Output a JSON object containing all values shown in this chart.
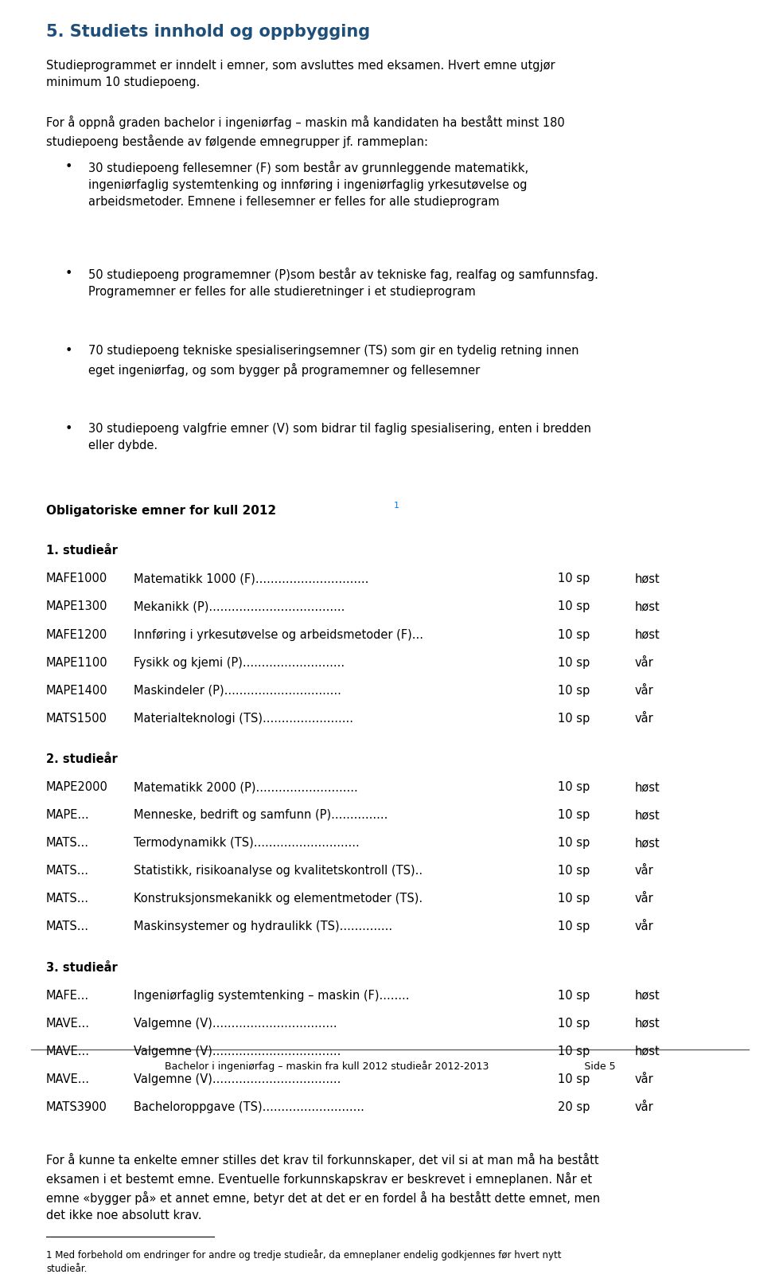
{
  "bg_color": "#ffffff",
  "heading_color": "#1F4E79",
  "text_color": "#000000",
  "heading": "5. Studiets innhold og oppbygging",
  "para1": "Studieprogrammet er inndelt i emner, som avsluttes med eksamen. Hvert emne utgjør\nminimum 10 studiepoeng.",
  "para2": "For å oppnå graden bachelor i ingeniørfag – maskin må kandidaten ha bestått minst 180\nstudiepoeng bestående av følgende emnegrupper jf. rammeplan:",
  "bullets": [
    "30 studiepoeng fellesemner (F) som består av grunnleggende matematikk,\ningeniørfaglig systemtenking og innføring i ingeniørfaglig yrkesutøvelse og\narbeidsmetoder. Emnene i fellesemner er felles for alle studieprogram",
    "50 studiepoeng programemner (P)som består av tekniske fag, realfag og samfunnsfag.\nProgramemner er felles for alle studieretninger i et studieprogram",
    "70 studiepoeng tekniske spesialiseringsemner (TS) som gir en tydelig retning innen\neget ingeniørfag, og som bygger på programemner og fellesemner",
    "30 studiepoeng valgfrie emner (V) som bidrar til faglig spesialisering, enten i bredden\neller dybde."
  ],
  "obligatory_heading": "Obligatoriske emner for kull 2012",
  "year1_heading": "1. studieår",
  "year1_rows": [
    [
      "MAFE1000",
      "Matematikk 1000 (F)..............................",
      "10 sp",
      "høst"
    ],
    [
      "MAPE1300",
      "Mekanikk (P)....................................",
      "10 sp",
      "høst"
    ],
    [
      "MAFE1200",
      "Innføring i yrkesutøvelse og arbeidsmetoder (F)...",
      "10 sp",
      "høst"
    ],
    [
      "MAPE1100",
      "Fysikk og kjemi (P)...........................",
      "10 sp",
      "vår"
    ],
    [
      "MAPE1400",
      "Maskindeler (P)...............................",
      "10 sp",
      "vår"
    ],
    [
      "MATS1500",
      "Materialteknologi (TS)........................",
      "10 sp",
      "vår"
    ]
  ],
  "year2_heading": "2. studieår",
  "year2_rows": [
    [
      "MAPE2000",
      "Matematikk 2000 (P)...........................",
      "10 sp",
      "høst"
    ],
    [
      "MAPE...",
      "Menneske, bedrift og samfunn (P)...............",
      "10 sp",
      "høst"
    ],
    [
      "MATS...",
      "Termodynamikk (TS)............................",
      "10 sp",
      "høst"
    ],
    [
      "MATS...",
      "Statistikk, risikoanalyse og kvalitetskontroll (TS)..",
      "10 sp",
      "vår"
    ],
    [
      "MATS...",
      "Konstruksjonsmekanikk og elementmetoder (TS).",
      "10 sp",
      "vår"
    ],
    [
      "MATS...",
      "Maskinsystemer og hydraulikk (TS)..............",
      "10 sp",
      "vår"
    ]
  ],
  "year3_heading": "3. studieår",
  "year3_rows": [
    [
      "MAFE...",
      "Ingeniørfaglig systemtenking – maskin (F)........",
      "10 sp",
      "høst"
    ],
    [
      "MAVE...",
      "Valgemne (V).................................",
      "10 sp",
      "høst"
    ],
    [
      "MAVE...",
      "Valgemne (V)..................................",
      "10 sp",
      "høst"
    ],
    [
      "MAVE...",
      "Valgemne (V)..................................",
      "10 sp",
      "vår"
    ],
    [
      "MATS3900",
      "Bacheloroppgave (TS)...........................",
      "20 sp",
      "vår"
    ]
  ],
  "footer_para": "For å kunne ta enkelte emner stilles det krav til forkunnskaper, det vil si at man må ha bestått\neksamen i et bestemt emne. Eventuelle forkunnskapskrav er beskrevet i emneplanen. Når et\nemne «bygger på» et annet emne, betyr det at det er en fordel å ha bestått dette emnet, men\ndet ikke noe absolutt krav.",
  "footnote": "1 Med forbehold om endringer for andre og tredje studieår, da emneplaner endelig godkjennes før hvert nytt\nstudieår.",
  "footer_line": "Bachelor i ingeniørfag – maskin fra kull 2012 studieår 2012-2013                              Side 5"
}
